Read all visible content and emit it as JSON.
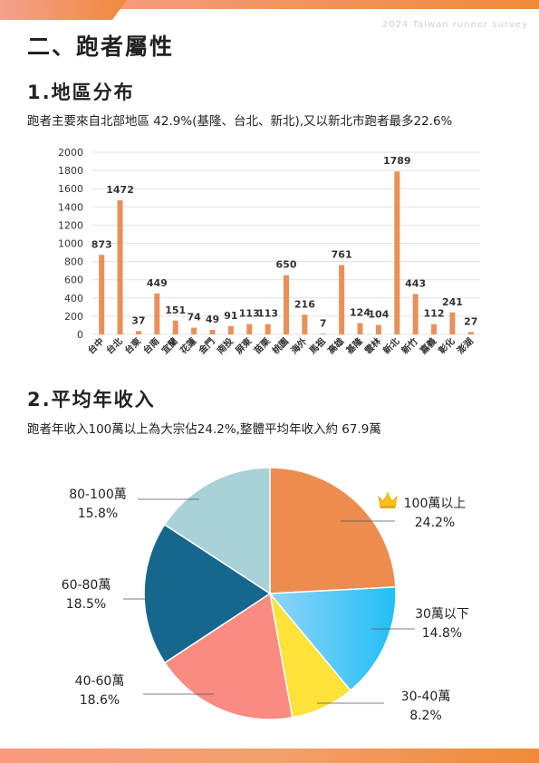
{
  "header": {
    "survey_label": "2024 Taiwan runner survey"
  },
  "section_title": "二、跑者屬性",
  "region": {
    "heading": "1.地區分布",
    "subtitle": "跑者主要來自北部地區 42.9%(基隆、台北、新北),又以新北市跑者最多22.6%"
  },
  "income": {
    "heading": "2.平均年收入",
    "subtitle": "跑者年收入100萬以上為大宗佔24.2%,整體平均年收入約 67.9萬"
  },
  "colors": {
    "bar": "#e8905a",
    "top_bar_start": "#f5a08e",
    "top_bar_end": "#ef8a3a",
    "slice_100_plus": "#ec8c4e",
    "slice_under_30": "#3fb9f0",
    "slice_30_40": "#fde23a",
    "slice_40_60": "#fb8b80",
    "slice_60_80": "#16678e",
    "slice_80_100": "#a8d1d8"
  },
  "chart_data": [
    {
      "type": "bar",
      "categories": [
        "台中",
        "台北",
        "台東",
        "台南",
        "宜蘭",
        "花蓮",
        "金門",
        "南投",
        "屏東",
        "苗栗",
        "桃園",
        "海外",
        "馬祖",
        "高雄",
        "基隆",
        "雲林",
        "新北",
        "新竹",
        "嘉義",
        "彰化",
        "澎湖"
      ],
      "values": [
        873,
        1472,
        37,
        449,
        151,
        74,
        49,
        91,
        113,
        113,
        650,
        216,
        7,
        761,
        124,
        104,
        1789,
        443,
        112,
        241,
        27
      ],
      "yticks": [
        "0",
        "200",
        "400",
        "600",
        "800",
        "1000",
        "1200",
        "1400",
        "1600",
        "1800",
        "2000"
      ],
      "ylim": [
        0,
        2000
      ],
      "grid": true,
      "title": "",
      "xlabel": "",
      "ylabel": ""
    },
    {
      "type": "pie",
      "slices": [
        {
          "label": "100萬以上",
          "value": 24.2,
          "percent_label": "24.2%",
          "color_key": "slice_100_plus",
          "icon": "crown-icon"
        },
        {
          "label": "30萬以下",
          "value": 14.8,
          "percent_label": "14.8%",
          "color_key": "slice_under_30"
        },
        {
          "label": "30-40萬",
          "value": 8.2,
          "percent_label": "8.2%",
          "color_key": "slice_30_40"
        },
        {
          "label": "40-60萬",
          "value": 18.6,
          "percent_label": "18.6%",
          "color_key": "slice_40_60"
        },
        {
          "label": "60-80萬",
          "value": 18.5,
          "percent_label": "18.5%",
          "color_key": "slice_60_80"
        },
        {
          "label": "80-100萬",
          "value": 15.8,
          "percent_label": "15.8%",
          "color_key": "slice_80_100"
        }
      ],
      "start_angle_deg": 0,
      "direction": "clockwise"
    }
  ]
}
